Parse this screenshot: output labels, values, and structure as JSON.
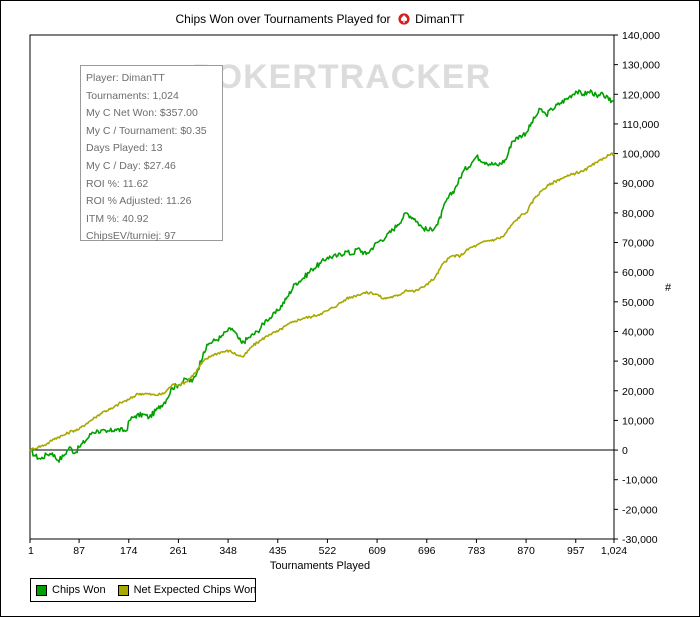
{
  "chart_data": {
    "type": "line",
    "title": "Chips Won over Tournaments Played for",
    "player": "DimanTT",
    "xlabel": "Tournaments Played",
    "ylabel": "#",
    "xlim": [
      1,
      1024
    ],
    "ylim": [
      -30000,
      140000
    ],
    "x_ticks": [
      "1",
      "87",
      "174",
      "261",
      "348",
      "435",
      "522",
      "609",
      "696",
      "783",
      "870",
      "957",
      "1,024"
    ],
    "y_ticks": [
      "140,000",
      "130,000",
      "120,000",
      "110,000",
      "100,000",
      "90,000",
      "80,000",
      "70,000",
      "60,000",
      "50,000",
      "40,000",
      "30,000",
      "20,000",
      "10,000",
      "0",
      "-10,000",
      "-20,000",
      "-30,000"
    ],
    "grid": false,
    "legend_position": "bottom-left",
    "series": [
      {
        "name": "Chips Won",
        "color": "#00a000",
        "points": [
          [
            1,
            0
          ],
          [
            10,
            -2000
          ],
          [
            20,
            -3000
          ],
          [
            30,
            -1500
          ],
          [
            40,
            -1000
          ],
          [
            50,
            -3500
          ],
          [
            60,
            -2000
          ],
          [
            70,
            1000
          ],
          [
            80,
            -1000
          ],
          [
            87,
            1000
          ],
          [
            100,
            3500
          ],
          [
            110,
            6000
          ],
          [
            120,
            6500
          ],
          [
            135,
            6000
          ],
          [
            150,
            7000
          ],
          [
            170,
            6500
          ],
          [
            175,
            10000
          ],
          [
            185,
            11500
          ],
          [
            200,
            12000
          ],
          [
            210,
            11000
          ],
          [
            225,
            14000
          ],
          [
            240,
            17000
          ],
          [
            250,
            21000
          ],
          [
            261,
            22000
          ],
          [
            275,
            24000
          ],
          [
            285,
            23000
          ],
          [
            295,
            27000
          ],
          [
            305,
            33000
          ],
          [
            315,
            36000
          ],
          [
            325,
            37000
          ],
          [
            335,
            38000
          ],
          [
            345,
            40000
          ],
          [
            355,
            41000
          ],
          [
            365,
            38000
          ],
          [
            372,
            36000
          ],
          [
            385,
            38000
          ],
          [
            400,
            40000
          ],
          [
            415,
            44000
          ],
          [
            425,
            45000
          ],
          [
            435,
            47000
          ],
          [
            450,
            51000
          ],
          [
            465,
            56000
          ],
          [
            480,
            58000
          ],
          [
            495,
            61000
          ],
          [
            510,
            63000
          ],
          [
            522,
            65000
          ],
          [
            540,
            65500
          ],
          [
            555,
            67000
          ],
          [
            565,
            66000
          ],
          [
            575,
            68000
          ],
          [
            590,
            66000
          ],
          [
            609,
            70000
          ],
          [
            625,
            72000
          ],
          [
            645,
            76000
          ],
          [
            660,
            80000
          ],
          [
            675,
            78000
          ],
          [
            688,
            75000
          ],
          [
            700,
            74000
          ],
          [
            715,
            76000
          ],
          [
            730,
            84000
          ],
          [
            745,
            88000
          ],
          [
            760,
            94000
          ],
          [
            775,
            97000
          ],
          [
            783,
            99000
          ],
          [
            800,
            97000
          ],
          [
            820,
            96000
          ],
          [
            835,
            98000
          ],
          [
            845,
            104000
          ],
          [
            860,
            106000
          ],
          [
            870,
            107000
          ],
          [
            885,
            112000
          ],
          [
            895,
            115000
          ],
          [
            905,
            113000
          ],
          [
            915,
            115000
          ],
          [
            930,
            117000
          ],
          [
            945,
            119000
          ],
          [
            957,
            121000
          ],
          [
            970,
            120000
          ],
          [
            985,
            121000
          ],
          [
            995,
            119000
          ],
          [
            1005,
            120000
          ],
          [
            1015,
            118000
          ],
          [
            1024,
            117500
          ]
        ]
      },
      {
        "name": "Net Expected Chips Won",
        "color": "#a8a800",
        "points": [
          [
            1,
            0
          ],
          [
            15,
            1000
          ],
          [
            30,
            2000
          ],
          [
            45,
            4000
          ],
          [
            60,
            5000
          ],
          [
            75,
            6500
          ],
          [
            87,
            7000
          ],
          [
            100,
            9000
          ],
          [
            115,
            11000
          ],
          [
            130,
            13000
          ],
          [
            145,
            14000
          ],
          [
            160,
            16000
          ],
          [
            174,
            17000
          ],
          [
            190,
            19000
          ],
          [
            205,
            19000
          ],
          [
            220,
            18500
          ],
          [
            235,
            19000
          ],
          [
            250,
            22000
          ],
          [
            261,
            22000
          ],
          [
            275,
            23000
          ],
          [
            290,
            26000
          ],
          [
            305,
            30000
          ],
          [
            320,
            32000
          ],
          [
            335,
            33000
          ],
          [
            350,
            33500
          ],
          [
            365,
            32000
          ],
          [
            375,
            31500
          ],
          [
            390,
            35000
          ],
          [
            405,
            37000
          ],
          [
            420,
            39000
          ],
          [
            435,
            40000
          ],
          [
            450,
            42000
          ],
          [
            465,
            43500
          ],
          [
            480,
            44500
          ],
          [
            495,
            45000
          ],
          [
            510,
            46000
          ],
          [
            522,
            47000
          ],
          [
            540,
            49000
          ],
          [
            555,
            51000
          ],
          [
            570,
            52000
          ],
          [
            585,
            53000
          ],
          [
            600,
            53000
          ],
          [
            609,
            52500
          ],
          [
            620,
            51000
          ],
          [
            630,
            51500
          ],
          [
            645,
            52000
          ],
          [
            660,
            54000
          ],
          [
            675,
            53500
          ],
          [
            690,
            55000
          ],
          [
            696,
            56000
          ],
          [
            710,
            58000
          ],
          [
            725,
            63000
          ],
          [
            740,
            65500
          ],
          [
            755,
            65500
          ],
          [
            770,
            68000
          ],
          [
            783,
            69000
          ],
          [
            800,
            70500
          ],
          [
            815,
            71000
          ],
          [
            830,
            72000
          ],
          [
            845,
            76000
          ],
          [
            860,
            79000
          ],
          [
            870,
            80000
          ],
          [
            885,
            85000
          ],
          [
            900,
            88000
          ],
          [
            915,
            90000
          ],
          [
            930,
            91500
          ],
          [
            945,
            92500
          ],
          [
            957,
            93500
          ],
          [
            970,
            94000
          ],
          [
            985,
            96000
          ],
          [
            995,
            97000
          ],
          [
            1005,
            98500
          ],
          [
            1015,
            99500
          ],
          [
            1024,
            100000
          ]
        ]
      }
    ]
  },
  "watermark": "POKERTRACKER",
  "stats_box": [
    "Player: DimanTT",
    "Tournaments: 1,024",
    "My C Net Won: $357.00",
    "My C / Tournament: $0.35",
    "Days Played: 13",
    "My C / Day: $27.46",
    "ROI %: 11.62",
    "ROI % Adjusted: 11.26",
    "ITM %: 40.92",
    "ChipsEV/turniej: 97"
  ]
}
